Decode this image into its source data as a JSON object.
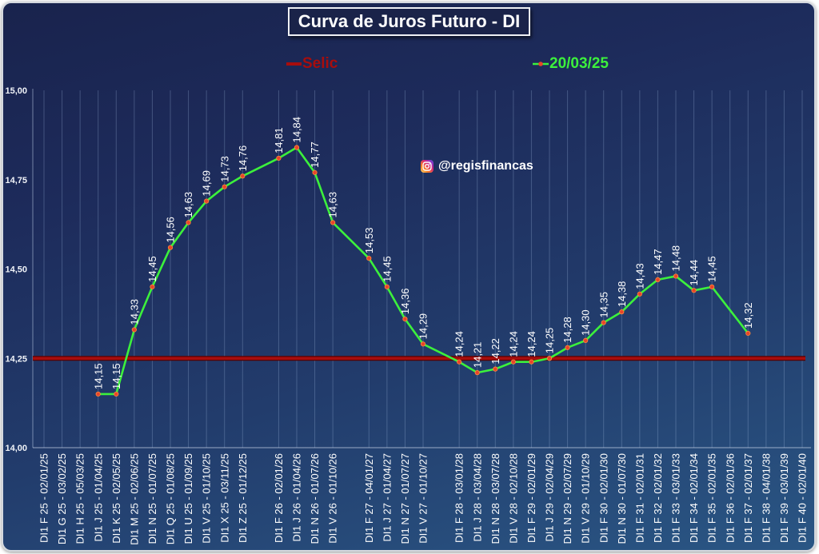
{
  "chart_data": {
    "type": "line",
    "title": "Curva de Juros Futuro - DI",
    "categories": [
      "DI1 F 25 - 02/01/25",
      "DI1 G 25 - 03/02/25",
      "DI1 H 25 - 05/03/25",
      "DI1 J 25 - 01/04/25",
      "DI1 K 25 - 02/05/25",
      "DI1 M 25 - 02/06/25",
      "DI1 N 25 - 01/07/25",
      "DI1 Q 25 - 01/08/25",
      "DI1 U 25 - 01/09/25",
      "DI1 V 25 - 01/10/25",
      "DI1 X 25 - 03/11/25",
      "DI1 Z 25 - 01/12/25",
      "",
      "DI1 F 26 - 02/01/26",
      "DI1 J 26 - 01/04/26",
      "DI1 N 26 - 01/07/26",
      "DI1 V 26 - 01/10/26",
      "",
      "DI1 F 27 - 04/01/27",
      "DI1 J 27 - 01/04/27",
      "DI1 N 27 - 01/07/27",
      "DI1 V 27 - 01/10/27",
      "",
      "DI1 F 28 - 03/01/28",
      "DI1 J 28 - 03/04/28",
      "DI1 N 28 - 03/07/28",
      "DI1 V 28 - 02/10/28",
      "DI1 F 29 - 02/01/29",
      "DI1 J 29 - 02/04/29",
      "DI1 N 29 - 02/07/29",
      "DI1 V 29 - 01/10/29",
      "DI1 F 30 - 02/01/30",
      "DI1 N 30 - 01/07/30",
      "DI1 F 31 - 02/01/31",
      "DI1 F 32 - 02/01/32",
      "DI1 F 33 - 03/01/33",
      "DI1 F 34 - 02/01/34",
      "DI1 F 35 - 02/01/35",
      "DI1 F 36 - 02/01/36",
      "DI1 F 37 - 02/01/37",
      "DI1 F 38 - 04/01/38",
      "DI1 F 39 - 03/01/39",
      "DI1 F 40 - 02/01/40"
    ],
    "ylim": [
      14.0,
      15.0
    ],
    "yticks": [
      14.0,
      14.25,
      14.5,
      14.75,
      15.0
    ],
    "ytick_labels": [
      "14,00",
      "14,25",
      "14,50",
      "14,75",
      "15,00"
    ],
    "grid": {
      "vertical": true,
      "horizontal": false
    },
    "legend": "top",
    "series": [
      {
        "name": "Selic",
        "color": "#a80d0d",
        "values": [
          14.25,
          14.25,
          14.25,
          14.25,
          14.25,
          14.25,
          14.25,
          14.25,
          14.25,
          14.25,
          14.25,
          14.25,
          14.25,
          14.25,
          14.25,
          14.25,
          14.25,
          14.25,
          14.25,
          14.25,
          14.25,
          14.25,
          14.25,
          14.25,
          14.25,
          14.25,
          14.25,
          14.25,
          14.25,
          14.25,
          14.25,
          14.25,
          14.25,
          14.25,
          14.25,
          14.25,
          14.25,
          14.25,
          14.25,
          14.25,
          14.25,
          14.25,
          14.25
        ]
      },
      {
        "name": "20/03/25",
        "color": "#3cf03c",
        "marker_color": "#e8452a",
        "values": [
          null,
          null,
          null,
          14.15,
          14.15,
          14.33,
          14.45,
          14.56,
          14.63,
          14.69,
          14.73,
          14.76,
          null,
          14.81,
          14.84,
          14.77,
          14.63,
          null,
          14.53,
          14.45,
          14.36,
          14.29,
          null,
          14.24,
          14.21,
          14.22,
          14.24,
          14.24,
          14.25,
          14.28,
          14.3,
          14.35,
          14.38,
          14.43,
          14.47,
          14.48,
          14.44,
          14.45,
          null,
          14.32,
          null,
          null,
          null
        ],
        "labels": [
          null,
          null,
          null,
          "14,15",
          "14,15",
          "14,33",
          "14,45",
          "14,56",
          "14,63",
          "14,69",
          "14,73",
          "14,76",
          null,
          "14,81",
          "14,84",
          "14,77",
          "14,63",
          null,
          "14,53",
          "14,45",
          "14,36",
          "14,29",
          null,
          "14,24",
          "14,21",
          "14,22",
          "14,24",
          "14,24",
          "14,25",
          "14,28",
          "14,30",
          "14,35",
          "14,38",
          "14,43",
          "14,47",
          "14,48",
          "14,44",
          "14,45",
          null,
          "14,32",
          null,
          null,
          null
        ]
      }
    ]
  },
  "watermark": {
    "icon": "instagram-icon",
    "handle": "@regisfinancas"
  }
}
